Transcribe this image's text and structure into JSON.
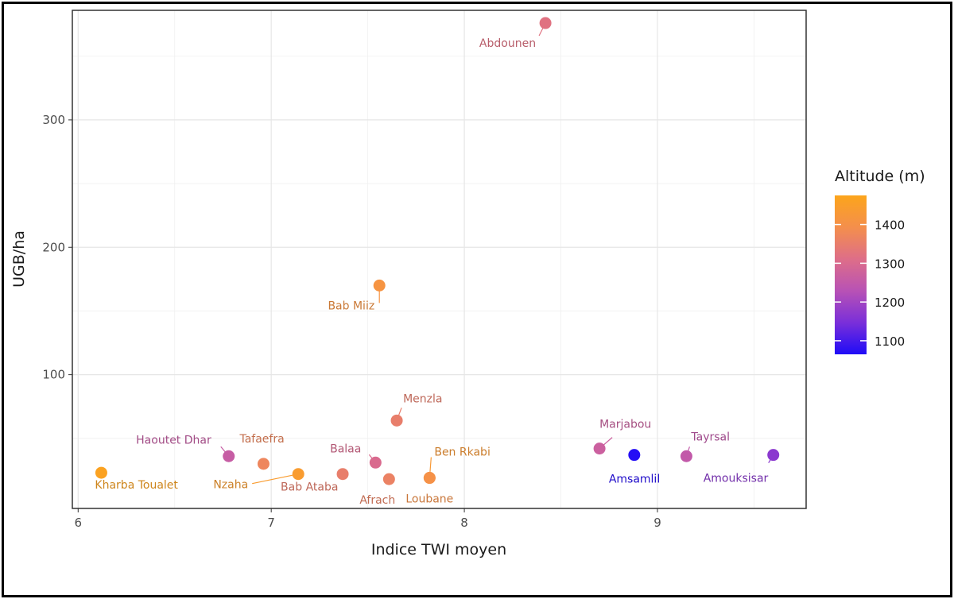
{
  "chart_data": {
    "type": "scatter",
    "xlabel": "Indice TWI moyen",
    "ylabel": "UGB/ha",
    "xlim": [
      5.97,
      9.77
    ],
    "ylim": [
      -5,
      386
    ],
    "x_ticks": [
      6,
      7,
      8,
      9
    ],
    "y_ticks": [
      100,
      200,
      300
    ],
    "grid": true,
    "legend": {
      "title": "Altitude (m)",
      "position": "right",
      "range": [
        1065,
        1475
      ],
      "ticks": [
        1100,
        1200,
        1300,
        1400
      ],
      "colors": [
        "#1f0cf7",
        "#7a2fd9",
        "#b852b5",
        "#de6e88",
        "#f48f4c",
        "#fca51b"
      ]
    },
    "points": [
      {
        "name": "Abdounen",
        "x": 8.42,
        "y": 376,
        "altitude": 1320
      },
      {
        "name": "Bab Miiz",
        "x": 7.56,
        "y": 170,
        "altitude": 1410
      },
      {
        "name": "Menzla",
        "x": 7.65,
        "y": 64,
        "altitude": 1350
      },
      {
        "name": "Haoutet Dhar",
        "x": 6.78,
        "y": 36,
        "altitude": 1260
      },
      {
        "name": "Tafaefra",
        "x": 6.96,
        "y": 30,
        "altitude": 1370
      },
      {
        "name": "Nzaha",
        "x": 7.14,
        "y": 22,
        "altitude": 1440
      },
      {
        "name": "Kharba Toualet",
        "x": 6.12,
        "y": 23,
        "altitude": 1465
      },
      {
        "name": "Bab Ataba",
        "x": 7.37,
        "y": 22,
        "altitude": 1350
      },
      {
        "name": "Balaa",
        "x": 7.54,
        "y": 31,
        "altitude": 1300
      },
      {
        "name": "Afrach",
        "x": 7.61,
        "y": 18,
        "altitude": 1360
      },
      {
        "name": "Ben Rkabi",
        "x": 7.82,
        "y": 19,
        "altitude": 1430
      },
      {
        "name": "Loubane",
        "x": 7.82,
        "y": 19,
        "altitude": 1400
      },
      {
        "name": "Marjabou",
        "x": 8.7,
        "y": 42,
        "altitude": 1270
      },
      {
        "name": "Amsamlil",
        "x": 8.88,
        "y": 37,
        "altitude": 1070
      },
      {
        "name": "Tayrsal",
        "x": 9.15,
        "y": 36,
        "altitude": 1250
      },
      {
        "name": "Amouksisar",
        "x": 9.6,
        "y": 37,
        "altitude": 1170
      }
    ]
  }
}
